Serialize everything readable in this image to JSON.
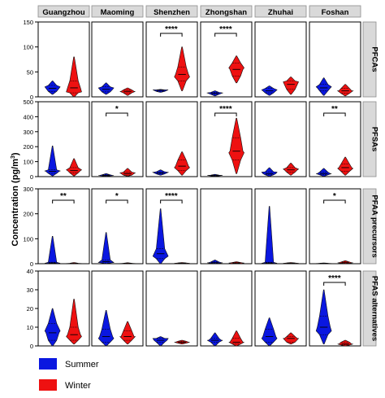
{
  "chart_data": {
    "type": "violin",
    "ylabel": "Concentration (pg/m³)",
    "ylabel_main": "Concentration (pg/m",
    "ylabel_sup": "3",
    "ylabel_end": ")",
    "columns": [
      "Guangzhou",
      "Maoming",
      "Shenzhen",
      "Zhongshan",
      "Zhuhai",
      "Foshan"
    ],
    "legend": {
      "placement": "bottom-left",
      "entries": [
        {
          "label": "Summer",
          "color": "#0a17e0"
        },
        {
          "label": "Winter",
          "color": "#ee1111"
        }
      ]
    },
    "series_colors": {
      "summer": "#0a17e0",
      "winter": "#ee1111"
    },
    "rows": [
      {
        "label": "PFCAs",
        "ylim": [
          0,
          150
        ],
        "ticks": [
          "0",
          "50",
          "100",
          "150"
        ],
        "tick_values": [
          0,
          50,
          100,
          150
        ],
        "cells": [
          {
            "summer": {
              "min": 5,
              "max": 32,
              "median": 17,
              "q1": 11,
              "q3": 23,
              "mode": 20
            },
            "winter": {
              "min": 0,
              "max": 80,
              "median": 18,
              "q1": 8,
              "q3": 32,
              "mode": 10
            },
            "sig": ""
          },
          {
            "summer": {
              "min": 5,
              "max": 28,
              "median": 15,
              "q1": 10,
              "q3": 20,
              "mode": 18
            },
            "winter": {
              "min": 3,
              "max": 18,
              "median": 11,
              "q1": 8,
              "q3": 14,
              "mode": 11
            },
            "sig": ""
          },
          {
            "summer": {
              "min": 9,
              "max": 15,
              "median": 13,
              "q1": 11,
              "q3": 14,
              "mode": 14
            },
            "winter": {
              "min": 12,
              "max": 100,
              "median": 45,
              "q1": 32,
              "q3": 60,
              "mode": 40
            },
            "sig": "****"
          },
          {
            "summer": {
              "min": 2,
              "max": 12,
              "median": 7,
              "q1": 5,
              "q3": 9,
              "mode": 8
            },
            "winter": {
              "min": 28,
              "max": 82,
              "median": 55,
              "q1": 42,
              "q3": 68,
              "mode": 58
            },
            "sig": "****"
          },
          {
            "summer": {
              "min": 3,
              "max": 22,
              "median": 12,
              "q1": 8,
              "q3": 17,
              "mode": 14
            },
            "winter": {
              "min": 5,
              "max": 40,
              "median": 25,
              "q1": 15,
              "q3": 32,
              "mode": 30
            },
            "sig": ""
          },
          {
            "summer": {
              "min": 3,
              "max": 38,
              "median": 18,
              "q1": 12,
              "q3": 25,
              "mode": 20
            },
            "winter": {
              "min": 2,
              "max": 25,
              "median": 12,
              "q1": 7,
              "q3": 17,
              "mode": 12
            },
            "sig": ""
          }
        ]
      },
      {
        "label": "PFSAs",
        "ylim": [
          0,
          500
        ],
        "ticks": [
          "0",
          "100",
          "200",
          "300",
          "400",
          "500"
        ],
        "tick_values": [
          0,
          100,
          200,
          300,
          400,
          500
        ],
        "cells": [
          {
            "summer": {
              "min": 5,
              "max": 205,
              "median": 35,
              "q1": 22,
              "q3": 45,
              "mode": 38
            },
            "winter": {
              "min": 5,
              "max": 120,
              "median": 40,
              "q1": 25,
              "q3": 60,
              "mode": 45
            },
            "sig": ""
          },
          {
            "summer": {
              "min": 2,
              "max": 20,
              "median": 8,
              "q1": 5,
              "q3": 12,
              "mode": 7
            },
            "winter": {
              "min": 3,
              "max": 55,
              "median": 20,
              "q1": 10,
              "q3": 30,
              "mode": 25
            },
            "sig": "*"
          },
          {
            "summer": {
              "min": 10,
              "max": 45,
              "median": 25,
              "q1": 18,
              "q3": 32,
              "mode": 28
            },
            "winter": {
              "min": 10,
              "max": 165,
              "median": 70,
              "q1": 40,
              "q3": 110,
              "mode": 60
            },
            "sig": ""
          },
          {
            "summer": {
              "min": 2,
              "max": 15,
              "median": 7,
              "q1": 5,
              "q3": 10,
              "mode": 8
            },
            "winter": {
              "min": 20,
              "max": 390,
              "median": 170,
              "q1": 110,
              "q3": 260,
              "mode": 160
            },
            "sig": "****"
          },
          {
            "summer": {
              "min": 2,
              "max": 60,
              "median": 20,
              "q1": 12,
              "q3": 32,
              "mode": 30
            },
            "winter": {
              "min": 10,
              "max": 90,
              "median": 45,
              "q1": 30,
              "q3": 60,
              "mode": 50
            },
            "sig": ""
          },
          {
            "summer": {
              "min": 2,
              "max": 55,
              "median": 20,
              "q1": 12,
              "q3": 30,
              "mode": 20
            },
            "winter": {
              "min": 10,
              "max": 130,
              "median": 60,
              "q1": 35,
              "q3": 85,
              "mode": 55
            },
            "sig": "**"
          }
        ]
      },
      {
        "label": "PFAA precursors",
        "ylim": [
          0,
          300
        ],
        "ticks": [
          "0",
          "100",
          "200",
          "300"
        ],
        "tick_values": [
          0,
          100,
          200,
          300
        ],
        "cells": [
          {
            "summer": {
              "min": 0,
              "max": 110,
              "median": 3,
              "q1": 1,
              "q3": 6,
              "mode": 2
            },
            "winter": {
              "min": 0,
              "max": 5,
              "median": 1,
              "q1": 0,
              "q3": 2,
              "mode": 1
            },
            "sig": "**"
          },
          {
            "summer": {
              "min": 0,
              "max": 125,
              "median": 8,
              "q1": 3,
              "q3": 15,
              "mode": 5
            },
            "winter": {
              "min": 0,
              "max": 4,
              "median": 1,
              "q1": 0,
              "q3": 2,
              "mode": 1
            },
            "sig": "*"
          },
          {
            "summer": {
              "min": 0,
              "max": 220,
              "median": 40,
              "q1": 20,
              "q3": 60,
              "mode": 30
            },
            "winter": {
              "min": 0,
              "max": 5,
              "median": 2,
              "q1": 1,
              "q3": 3,
              "mode": 2
            },
            "sig": "****"
          },
          {
            "summer": {
              "min": 0,
              "max": 15,
              "median": 4,
              "q1": 2,
              "q3": 7,
              "mode": 4
            },
            "winter": {
              "min": 0,
              "max": 8,
              "median": 3,
              "q1": 1,
              "q3": 5,
              "mode": 3
            },
            "sig": ""
          },
          {
            "summer": {
              "min": 0,
              "max": 230,
              "median": 3,
              "q1": 1,
              "q3": 6,
              "mode": 2
            },
            "winter": {
              "min": 0,
              "max": 5,
              "median": 2,
              "q1": 1,
              "q3": 3,
              "mode": 2
            },
            "sig": ""
          },
          {
            "summer": {
              "min": 0,
              "max": 3,
              "median": 1,
              "q1": 0,
              "q3": 2,
              "mode": 1
            },
            "winter": {
              "min": 0,
              "max": 12,
              "median": 4,
              "q1": 2,
              "q3": 7,
              "mode": 4
            },
            "sig": "*"
          }
        ]
      },
      {
        "label": "PFAS alternatives",
        "ylim": [
          0,
          40
        ],
        "ticks": [
          "0",
          "10",
          "20",
          "30",
          "40"
        ],
        "tick_values": [
          0,
          10,
          20,
          30,
          40
        ],
        "cells": [
          {
            "summer": {
              "min": 0,
              "max": 20,
              "median": 7,
              "q1": 3,
              "q3": 12,
              "mode": 8
            },
            "winter": {
              "min": 1,
              "max": 25,
              "median": 6,
              "q1": 3,
              "q3": 10,
              "mode": 5
            },
            "sig": ""
          },
          {
            "summer": {
              "min": 0,
              "max": 19,
              "median": 5,
              "q1": 2,
              "q3": 9,
              "mode": 4
            },
            "winter": {
              "min": 1,
              "max": 13,
              "median": 5,
              "q1": 3,
              "q3": 8,
              "mode": 5
            },
            "sig": ""
          },
          {
            "summer": {
              "min": 0,
              "max": 5,
              "median": 3,
              "q1": 2,
              "q3": 4,
              "mode": 4
            },
            "winter": {
              "min": 1,
              "max": 3,
              "median": 2,
              "q1": 1.5,
              "q3": 2.5,
              "mode": 2
            },
            "sig": ""
          },
          {
            "summer": {
              "min": 0,
              "max": 7,
              "median": 3,
              "q1": 2,
              "q3": 4,
              "mode": 3
            },
            "winter": {
              "min": 0,
              "max": 8,
              "median": 2,
              "q1": 1,
              "q3": 4,
              "mode": 2
            },
            "sig": ""
          },
          {
            "summer": {
              "min": 0,
              "max": 15,
              "median": 5,
              "q1": 2,
              "q3": 9,
              "mode": 4
            },
            "winter": {
              "min": 1,
              "max": 7,
              "median": 4,
              "q1": 2,
              "q3": 5,
              "mode": 4
            },
            "sig": ""
          },
          {
            "summer": {
              "min": 1,
              "max": 30,
              "median": 10,
              "q1": 6,
              "q3": 16,
              "mode": 8
            },
            "winter": {
              "min": 0,
              "max": 3,
              "median": 1,
              "q1": 0.5,
              "q3": 2,
              "mode": 1
            },
            "sig": "****"
          }
        ]
      }
    ]
  }
}
